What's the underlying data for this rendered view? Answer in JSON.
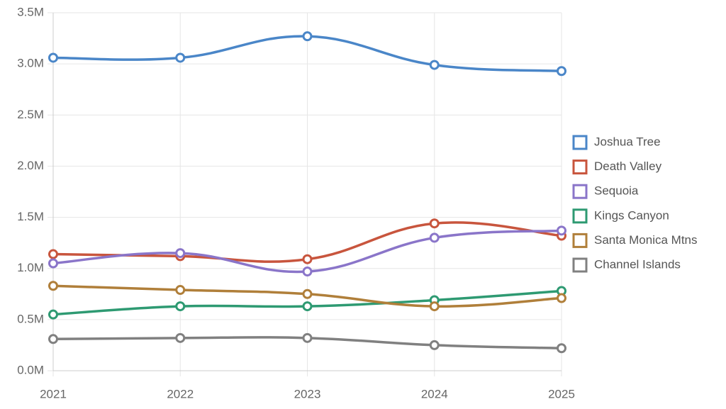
{
  "chart_data": {
    "type": "line",
    "categories": [
      "2021",
      "2022",
      "2023",
      "2024",
      "2025"
    ],
    "series": [
      {
        "name": "Joshua Tree",
        "color": "#4a86c8",
        "values": [
          3060000,
          3060000,
          3270000,
          2990000,
          2930000
        ]
      },
      {
        "name": "Death Valley",
        "color": "#c8553d",
        "values": [
          1140000,
          1120000,
          1090000,
          1440000,
          1320000
        ]
      },
      {
        "name": "Sequoia",
        "color": "#8a75c9",
        "values": [
          1050000,
          1150000,
          970000,
          1300000,
          1370000
        ]
      },
      {
        "name": "Kings Canyon",
        "color": "#2e9a72",
        "values": [
          550000,
          630000,
          630000,
          690000,
          780000
        ]
      },
      {
        "name": "Santa Monica Mtns",
        "color": "#b07f3a",
        "values": [
          830000,
          790000,
          750000,
          630000,
          710000
        ]
      },
      {
        "name": "Channel Islands",
        "color": "#808080",
        "values": [
          310000,
          320000,
          320000,
          250000,
          220000
        ]
      }
    ],
    "ylim": [
      0,
      3500000
    ],
    "yticks": [
      {
        "value": 0,
        "label": "0.0M"
      },
      {
        "value": 500000,
        "label": "0.5M"
      },
      {
        "value": 1000000,
        "label": "1.0M"
      },
      {
        "value": 1500000,
        "label": "1.5M"
      },
      {
        "value": 2000000,
        "label": "2.0M"
      },
      {
        "value": 2500000,
        "label": "2.5M"
      },
      {
        "value": 3000000,
        "label": "3.0M"
      },
      {
        "value": 3500000,
        "label": "3.5M"
      }
    ],
    "grid": true,
    "legend": "right"
  }
}
